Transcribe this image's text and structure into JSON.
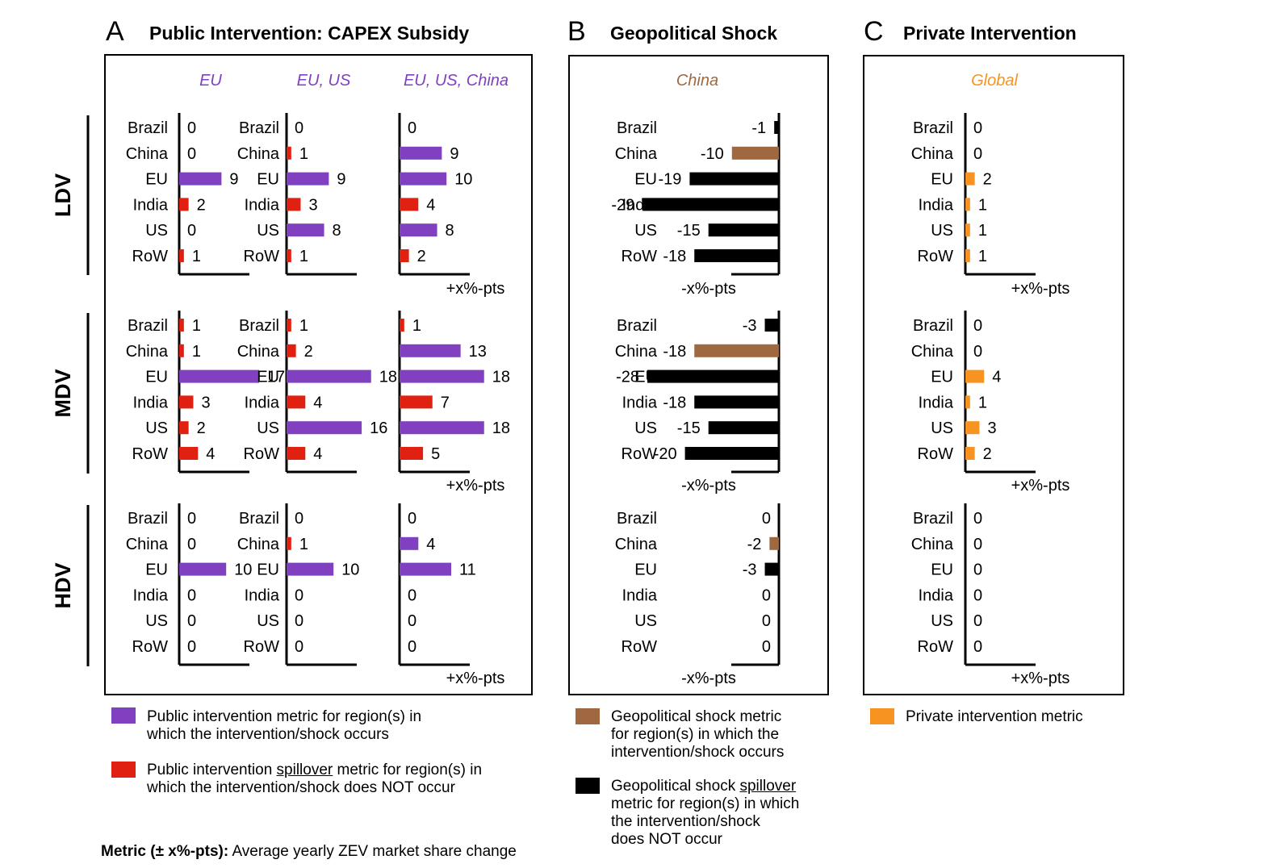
{
  "letters": {
    "a": "A",
    "b": "B",
    "c": "C"
  },
  "titles": {
    "a": "Public Intervention: CAPEX Subsidy",
    "b": "Geopolitical Shock",
    "c": "Private Intervention"
  },
  "colors": {
    "purple": "#8040c0",
    "red": "#e02010",
    "brown": "#a06840",
    "black": "#000000",
    "orange": "#f79321"
  },
  "chart_data": {
    "type": "bar",
    "orientation": "horizontal",
    "categories": [
      "Brazil",
      "China",
      "EU",
      "India",
      "US",
      "RoW"
    ],
    "vehicle_classes": [
      "LDV",
      "MDV",
      "HDV"
    ],
    "panels": [
      {
        "panel": "A",
        "scenario": "EU",
        "axis_label": "+x%-pts",
        "highlight": [
          "EU"
        ],
        "values": {
          "LDV": [
            0,
            0,
            9,
            2,
            0,
            1
          ],
          "MDV": [
            1,
            1,
            17,
            3,
            2,
            4
          ],
          "HDV": [
            0,
            0,
            10,
            0,
            0,
            0
          ]
        }
      },
      {
        "panel": "A",
        "scenario": "EU, US",
        "axis_label": "+x%-pts",
        "highlight": [
          "EU",
          "US"
        ],
        "values": {
          "LDV": [
            0,
            1,
            9,
            3,
            8,
            1
          ],
          "MDV": [
            1,
            2,
            18,
            4,
            16,
            4
          ],
          "HDV": [
            0,
            1,
            10,
            0,
            0,
            0
          ]
        }
      },
      {
        "panel": "A",
        "scenario": "EU, US, China",
        "axis_label": "+x%-pts",
        "highlight": [
          "China",
          "EU",
          "US"
        ],
        "values": {
          "LDV": [
            0,
            9,
            10,
            4,
            8,
            2
          ],
          "MDV": [
            1,
            13,
            18,
            7,
            18,
            5
          ],
          "HDV": [
            0,
            4,
            11,
            0,
            0,
            0
          ]
        }
      },
      {
        "panel": "B",
        "scenario": "China",
        "axis_label": "-x%-pts",
        "highlight": [
          "China"
        ],
        "values": {
          "LDV": [
            -1,
            -10,
            -19,
            -29,
            -15,
            -18
          ],
          "MDV": [
            -3,
            -18,
            -28,
            -18,
            -15,
            -20
          ],
          "HDV": [
            0,
            -2,
            -3,
            0,
            0,
            0
          ]
        }
      },
      {
        "panel": "C",
        "scenario": "Global",
        "axis_label": "+x%-pts",
        "highlight": [
          "Brazil",
          "China",
          "EU",
          "India",
          "US",
          "RoW"
        ],
        "values": {
          "LDV": [
            0,
            0,
            2,
            1,
            1,
            1
          ],
          "MDV": [
            0,
            0,
            4,
            1,
            3,
            2
          ],
          "HDV": [
            0,
            0,
            0,
            0,
            0,
            0
          ]
        }
      }
    ]
  },
  "legend": {
    "a1": [
      "Public intervention metric for region(s) in",
      "which the intervention/shock occurs"
    ],
    "a2_pre": "Public intervention ",
    "a2_ul": "spillover",
    "a2_post": " metric for region(s) in",
    "a2_line2": "which the intervention/shock does NOT occur",
    "b1": [
      "Geopolitical shock metric",
      "for region(s) in which the",
      "intervention/shock occurs"
    ],
    "b2_pre": "Geopolitical shock ",
    "b2_ul": "spillover",
    "b2_rest": [
      "metric for region(s) in which",
      "the intervention/shock",
      "does NOT occur"
    ],
    "c1": "Private intervention metric"
  },
  "footnote": {
    "bold": "Metric (± x%-pts):",
    "text": " Average yearly ZEV market share change"
  }
}
